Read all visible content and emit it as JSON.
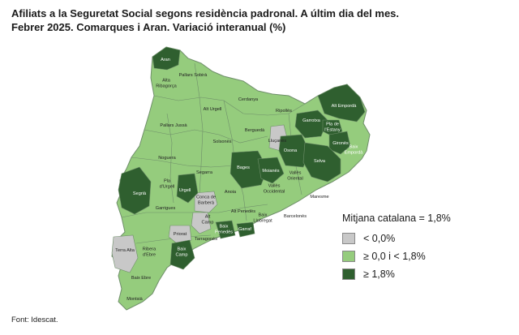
{
  "title_line1": "Afiliats a la Seguretat Social segons residència padronal. A últim dia del mes.",
  "title_line2": "Febrer 2025. Comarques i Aran. Variació interanual (%)",
  "legend": {
    "mean": "Mitjana catalana = 1,8%",
    "items": [
      {
        "label": "< 0,0%",
        "color": "#c8c8c8"
      },
      {
        "label": "≥ 0,0 i < 1,8%",
        "color": "#95cc7d"
      },
      {
        "label": "≥ 1,8%",
        "color": "#2f5f2f"
      }
    ]
  },
  "source": "Font: Idescat.",
  "colors": {
    "grey": "#c8c8c8",
    "light_green": "#95cc7d",
    "dark_green": "#2f5f2f",
    "border": "#6f8f6a"
  },
  "regions": {
    "aran": "Aran",
    "pallars_sobira": "Pallars Sobirà",
    "alta_ribagorca": "Alta\nRibagorça",
    "alt_urgell": "Alt Urgell",
    "cerdanya": "Cerdanya",
    "ripolles": "Ripollès",
    "alt_emporda": "Alt Empordà",
    "pallars_jussa": "Pallars Jussà",
    "berguedà": "Berguedà",
    "garrotxa": "Garrotxa",
    "pla_estany": "Pla de\nl'Estany",
    "solsones": "Solsonès",
    "llucanes": "Lluçanès",
    "osona": "Osona",
    "girones": "Gironès",
    "baix_emporda": "Baix\nEmpordà",
    "noguera": "Noguera",
    "bages": "Bages",
    "moianes": "Moianès",
    "selva": "Selva",
    "segarra": "Segarra",
    "valles_oriental": "Vallès\nOriental",
    "segria": "Segrià",
    "pla_urgell": "Pla\nd'Urgell",
    "urgell": "Urgell",
    "anoia": "Anoia",
    "valles_occidental": "Vallès\nOccidental",
    "maresme": "Maresme",
    "garrigues": "Garrigues",
    "conca_barbera": "Conca de\nBarberà",
    "alt_penedes": "Alt Penedès",
    "baix_llobregat": "Baix\nLlobregat",
    "barcelones": "Barcelonès",
    "alt_camp": "Alt\nCamp",
    "baix_penedes": "Baix\nPenedès",
    "garraf": "Garraf",
    "priorat": "Priorat",
    "tarragones": "Tarragonès",
    "terra_alta": "Terra Alta",
    "ribera_ebre": "Ribera\nd'Ebre",
    "baix_camp": "Baix\nCamp",
    "baix_ebre": "Baix Ebre",
    "montsia": "Montsià"
  }
}
